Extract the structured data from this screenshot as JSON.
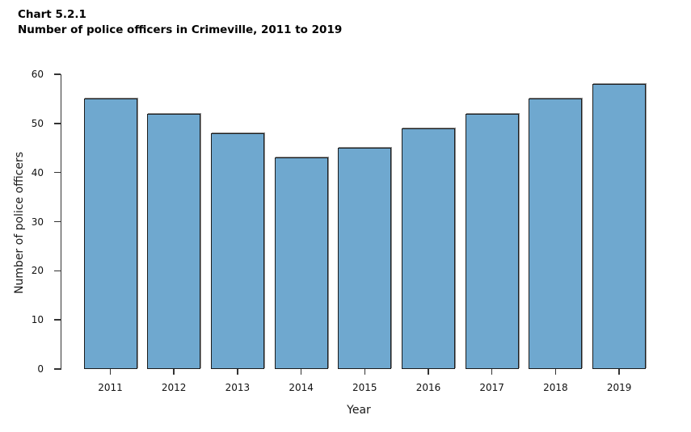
{
  "title": {
    "line1": "Chart 5.2.1",
    "line2": "Number of police officers in Crimeville, 2011 to 2019"
  },
  "chart_data": {
    "type": "bar",
    "title": "Number of police officers in Crimeville, 2011 to 2019",
    "categories": [
      "2011",
      "2012",
      "2013",
      "2014",
      "2015",
      "2016",
      "2017",
      "2018",
      "2019"
    ],
    "values": [
      55,
      52,
      48,
      43,
      45,
      49,
      52,
      55,
      58
    ],
    "xlabel": "Year",
    "ylabel": "Number of police officers",
    "ylim": [
      0,
      60
    ],
    "yticks": [
      0,
      10,
      20,
      30,
      40,
      50,
      60
    ],
    "grid": false,
    "legend_position": "none",
    "bar_color": "#6FA8CF",
    "bar_border_color": "#1c1c1c",
    "axis_color": "#333333",
    "background_color": "#FFFFFF"
  }
}
